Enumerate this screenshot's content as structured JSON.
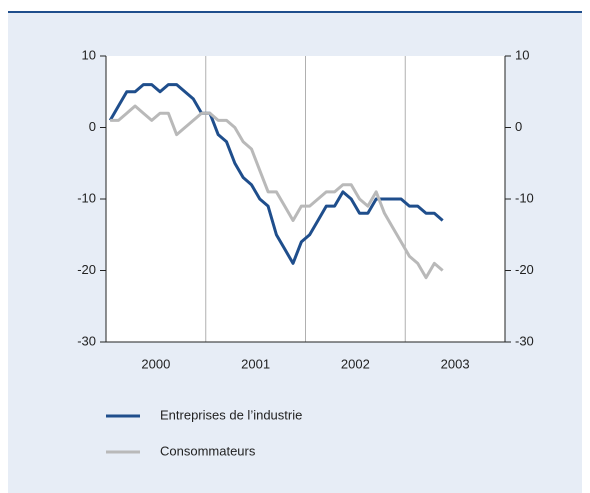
{
  "chart_data": {
    "type": "line",
    "categories": [
      null,
      null,
      null,
      null,
      null,
      null,
      "2000",
      null,
      null,
      null,
      null,
      null,
      null,
      null,
      null,
      null,
      null,
      null,
      "2001",
      null,
      null,
      null,
      null,
      null,
      null,
      null,
      null,
      null,
      null,
      null,
      "2002",
      null,
      null,
      null,
      null,
      null,
      null,
      null,
      null,
      null,
      null,
      null,
      "2003",
      null,
      null,
      null,
      null,
      null
    ],
    "series": [
      {
        "name": "Entreprises de l’industrie",
        "color": "#1f4e8c",
        "values": [
          1,
          3,
          5,
          5,
          6,
          6,
          5,
          6,
          6,
          5,
          4,
          2,
          2,
          -1,
          -2,
          -5,
          -7,
          -8,
          -10,
          -11,
          -15,
          -17,
          -19,
          -16,
          -15,
          -13,
          -11,
          -11,
          -9,
          -10,
          -12,
          -12,
          -10,
          -10,
          -10,
          -10,
          -11,
          -11,
          -12,
          -12,
          -13,
          null,
          null,
          null,
          null,
          null,
          null,
          null
        ]
      },
      {
        "name": "Consommateurs",
        "color": "#b9b9b9",
        "values": [
          1,
          1,
          2,
          3,
          2,
          1,
          2,
          2,
          -1,
          0,
          1,
          2,
          2,
          1,
          1,
          0,
          -2,
          -3,
          -6,
          -9,
          -9,
          -11,
          -13,
          -11,
          -11,
          -10,
          -9,
          -9,
          -8,
          -8,
          -10,
          -11,
          -9,
          -12,
          -14,
          -16,
          -18,
          -19,
          -21,
          -19,
          -20,
          null,
          null,
          null,
          null,
          null,
          null,
          null
        ]
      }
    ],
    "ylim": [
      -30,
      10
    ],
    "yticks": [
      10,
      0,
      -10,
      -20,
      -30
    ],
    "y2lim": [
      -30,
      10
    ],
    "y2ticks": [
      10,
      0,
      -10,
      -20,
      -30
    ]
  }
}
